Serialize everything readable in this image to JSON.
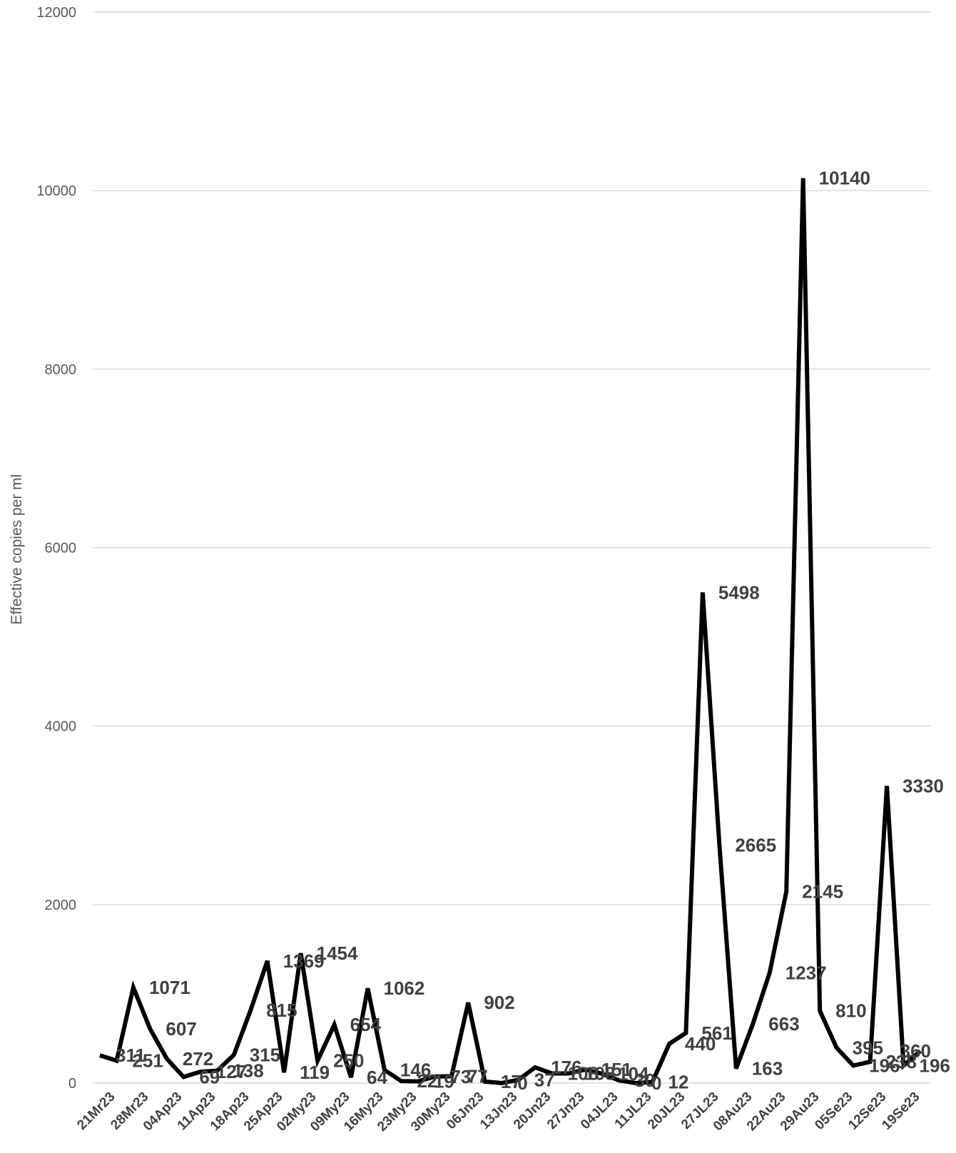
{
  "chart_data": {
    "type": "line",
    "ylabel": "Effective copies per ml",
    "xlabel": "",
    "title": "",
    "ylim": [
      0,
      12000
    ],
    "yticks": [
      0,
      2000,
      4000,
      6000,
      8000,
      10000,
      12000
    ],
    "grid": true,
    "legend": "none",
    "x_tick_labels": [
      "21Mr23",
      "28Mr23",
      "04Ap23",
      "11Ap23",
      "18Ap23",
      "25Ap23",
      "02My23",
      "09My23",
      "16My23",
      "23My23",
      "30My23",
      "06Jn23",
      "13Jn23",
      "20Jn23",
      "27Jn23",
      "04JL23",
      "11JL23",
      "20JL23",
      "27JL23",
      "08Au23",
      "22Au23",
      "29Au23",
      "05Se23",
      "12Se23",
      "19Se23"
    ],
    "series": [
      {
        "name": "",
        "color": "#000000",
        "values": [
          311,
          251,
          1071,
          607,
          272,
          69,
          127,
          138,
          315,
          815,
          1369,
          119,
          1454,
          250,
          654,
          64,
          1062,
          146,
          22,
          19,
          73,
          77,
          902,
          17,
          0,
          37,
          176,
          108,
          108,
          151,
          104,
          30,
          0,
          12,
          440,
          561,
          5498,
          2665,
          163,
          663,
          1237,
          2145,
          10140,
          810,
          395,
          196,
          238,
          3330,
          196,
          360
        ],
        "labels": [
          "311",
          "251",
          "1071",
          "607",
          "272",
          "69",
          "127",
          "138",
          "315",
          "815",
          "1369",
          "119",
          "1454",
          "250",
          "654",
          "64",
          "1062",
          "146",
          "22",
          "19",
          "73",
          "77",
          "902",
          "17",
          "0",
          "37",
          "176",
          "108",
          "108",
          "151",
          "104",
          "30",
          "0",
          "12",
          "440",
          "561",
          "5498",
          "2665",
          "163",
          "663",
          "1237",
          "2145",
          "10140",
          "810",
          "395",
          "196",
          "238",
          "3330",
          "196",
          "360"
        ]
      }
    ]
  }
}
